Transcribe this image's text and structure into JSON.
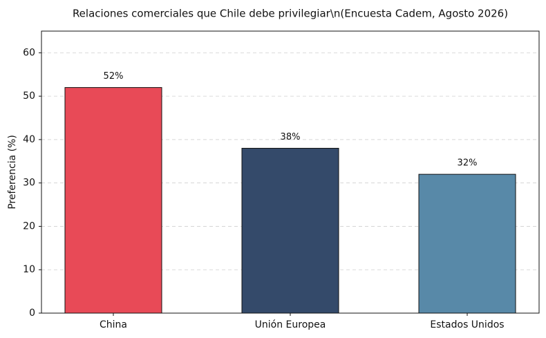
{
  "chart_data": {
    "type": "bar",
    "title": "Relaciones comerciales que Chile debe privilegiar\\n(Encuesta Cadem, Agosto 2026)",
    "y_label": "Preferencia (%)",
    "categories": [
      "China",
      "Unión Europea",
      "Estados Unidos"
    ],
    "values": [
      52,
      38,
      32
    ],
    "value_labels": [
      "52%",
      "38%",
      "32%"
    ],
    "colors": [
      "#e84a57",
      "#344a6a",
      "#5889a8"
    ],
    "ylim": [
      0,
      65
    ],
    "yticks": [
      0,
      10,
      20,
      30,
      40,
      50,
      60
    ],
    "grid": true
  }
}
